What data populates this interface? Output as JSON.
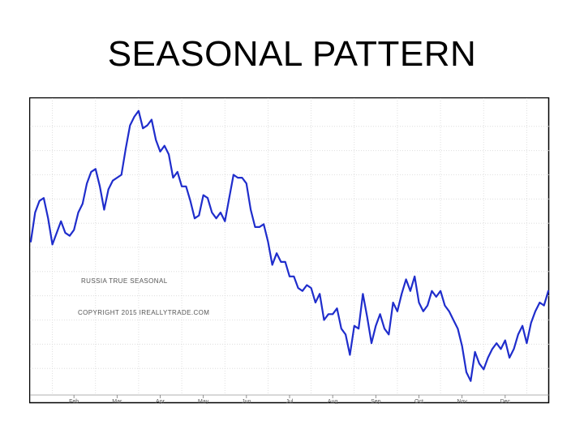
{
  "slide": {
    "title": "SEASONAL PATTERN"
  },
  "chart_data": {
    "type": "line",
    "annotations": [
      "RUSSIA TRUE SEASONAL",
      "COPYRIGHT 2015 IREALLYTRADE.COM"
    ],
    "x_tick_labels": [
      "Feb",
      "Mar",
      "Apr",
      "May",
      "Jun",
      "Jul",
      "Aug",
      "Sep",
      "Oct",
      "Nov",
      "Dec"
    ],
    "x_range": [
      0,
      12
    ],
    "y_range": [
      0,
      100
    ],
    "grid": true,
    "line_color": "#1f2dcc",
    "series": [
      {
        "x": [
          0.0,
          0.1,
          0.2,
          0.3,
          0.4,
          0.5,
          0.6,
          0.7,
          0.8,
          0.9,
          1.0,
          1.1,
          1.2,
          1.3,
          1.4,
          1.5,
          1.6,
          1.7,
          1.8,
          1.9,
          2.0,
          2.1,
          2.2,
          2.3,
          2.4,
          2.5,
          2.6,
          2.7,
          2.8,
          2.9,
          3.0,
          3.1,
          3.2,
          3.3,
          3.4,
          3.5,
          3.6,
          3.7,
          3.8,
          3.9,
          4.0,
          4.1,
          4.2,
          4.3,
          4.4,
          4.5,
          4.6,
          4.7,
          4.8,
          4.9,
          5.0,
          5.1,
          5.2,
          5.3,
          5.4,
          5.5,
          5.6,
          5.7,
          5.8,
          5.9,
          6.0,
          6.1,
          6.2,
          6.3,
          6.4,
          6.5,
          6.6,
          6.7,
          6.8,
          6.9,
          7.0,
          7.1,
          7.2,
          7.3,
          7.4,
          7.5,
          7.6,
          7.7,
          7.8,
          7.9,
          8.0,
          8.1,
          8.2,
          8.3,
          8.4,
          8.5,
          8.6,
          8.7,
          8.8,
          8.9,
          9.0,
          9.1,
          9.2,
          9.3,
          9.4,
          9.5,
          9.6,
          9.7,
          9.8,
          9.9,
          10.0,
          10.1,
          10.2,
          10.3,
          10.4,
          10.5,
          10.6,
          10.7,
          10.8,
          10.9,
          11.0,
          11.1,
          11.2,
          11.3,
          11.4,
          11.5,
          11.6,
          11.7,
          11.8,
          11.9,
          12.0
        ],
        "y": [
          52,
          62,
          66,
          67,
          60,
          51,
          55,
          59,
          55,
          54,
          56,
          62,
          65,
          72,
          76,
          77,
          71,
          63,
          70,
          73,
          74,
          75,
          84,
          92,
          95,
          97,
          91,
          92,
          94,
          87,
          83,
          85,
          82,
          74,
          76,
          71,
          71,
          66,
          60,
          61,
          68,
          67,
          62,
          60,
          62,
          59,
          67,
          75,
          74,
          74,
          72,
          63,
          57,
          57,
          58,
          52,
          44,
          48,
          45,
          45,
          40,
          40,
          36,
          35,
          37,
          36,
          31,
          34,
          25,
          27,
          27,
          29,
          22,
          20,
          13,
          23,
          22,
          34,
          26,
          17,
          23,
          27,
          22,
          20,
          31,
          28,
          34,
          39,
          35,
          40,
          31,
          28,
          30,
          35,
          33,
          35,
          30,
          28,
          25,
          22,
          16,
          7,
          4,
          14,
          10,
          8,
          12,
          15,
          17,
          15,
          18,
          12,
          15,
          20,
          23,
          17,
          24,
          28,
          31,
          30,
          35
        ]
      }
    ]
  }
}
